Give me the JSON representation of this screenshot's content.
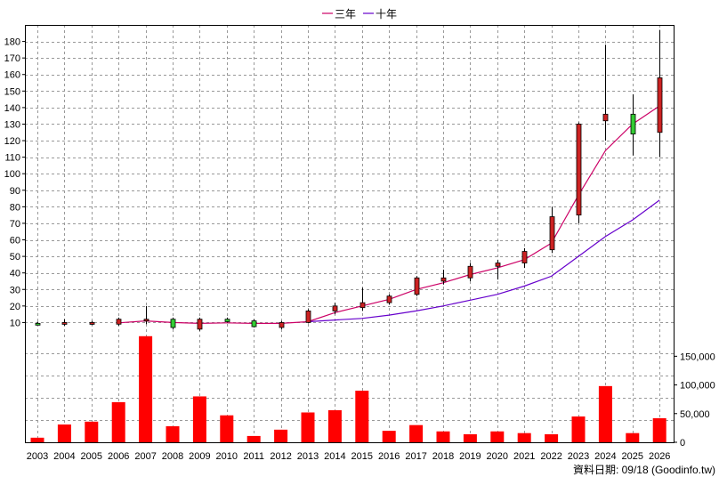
{
  "legend": {
    "items": [
      {
        "label": "三年",
        "color": "#cc0066"
      },
      {
        "label": "十年",
        "color": "#6600cc"
      }
    ],
    "position": "top-center"
  },
  "source_note": "資料日期: 09/18  (Goodinfo.tw)",
  "colors": {
    "up_candle": "#cc2222",
    "down_candle": "#33cc33",
    "volume_bar": "#ff0000",
    "grid": "#999999"
  },
  "chart_data": [
    {
      "type": "candlestick",
      "title": "",
      "grid": true,
      "x": [
        "2003",
        "2004",
        "2005",
        "2006",
        "2007",
        "2008",
        "2009",
        "2010",
        "2011",
        "2012",
        "2013",
        "2014",
        "2015",
        "2016",
        "2017",
        "2018",
        "2019",
        "2020",
        "2021",
        "2022",
        "2023",
        "2024",
        "2025",
        "2026"
      ],
      "y_ticks": [
        10,
        20,
        30,
        40,
        50,
        60,
        70,
        80,
        90,
        100,
        110,
        120,
        130,
        140,
        150,
        160,
        170,
        180
      ],
      "ylim": [
        0,
        190
      ],
      "ohlc": [
        {
          "open": 9.5,
          "high": 10.5,
          "low": 8.5,
          "close": 9
        },
        {
          "open": 9.5,
          "high": 12,
          "low": 8,
          "close": 10
        },
        {
          "open": 9,
          "high": 11,
          "low": 8.5,
          "close": 10
        },
        {
          "open": 9,
          "high": 13,
          "low": 8,
          "close": 12
        },
        {
          "open": 11,
          "high": 20,
          "low": 9,
          "close": 12
        },
        {
          "open": 12,
          "high": 13,
          "low": 6,
          "close": 7
        },
        {
          "open": 6,
          "high": 13,
          "low": 5,
          "close": 12
        },
        {
          "open": 12,
          "high": 13,
          "low": 10,
          "close": 10.5
        },
        {
          "open": 11,
          "high": 12,
          "low": 7,
          "close": 7.5
        },
        {
          "open": 7,
          "high": 11,
          "low": 6,
          "close": 10
        },
        {
          "open": 10,
          "high": 18,
          "low": 9.5,
          "close": 17
        },
        {
          "open": 17,
          "high": 22,
          "low": 15,
          "close": 20
        },
        {
          "open": 19,
          "high": 31,
          "low": 17,
          "close": 22
        },
        {
          "open": 22,
          "high": 27,
          "low": 21,
          "close": 26
        },
        {
          "open": 27,
          "high": 38,
          "low": 26,
          "close": 37
        },
        {
          "open": 35,
          "high": 42,
          "low": 33,
          "close": 37
        },
        {
          "open": 37,
          "high": 46,
          "low": 35,
          "close": 44
        },
        {
          "open": 44,
          "high": 48,
          "low": 36,
          "close": 46
        },
        {
          "open": 46,
          "high": 55,
          "low": 43,
          "close": 53
        },
        {
          "open": 54,
          "high": 80,
          "low": 52,
          "close": 74
        },
        {
          "open": 75,
          "high": 131,
          "low": 70,
          "close": 130
        },
        {
          "open": 132,
          "high": 178,
          "low": 120,
          "close": 136
        },
        {
          "open": 136,
          "high": 148,
          "low": 111,
          "close": 124
        },
        {
          "open": 125,
          "high": 187,
          "low": 110,
          "close": 158
        }
      ],
      "series": [
        {
          "name": "三年",
          "values": [
            null,
            null,
            null,
            9.8,
            11,
            10,
            9.5,
            9.8,
            9.5,
            9.5,
            10.5,
            16,
            20,
            24,
            30,
            34,
            39,
            43,
            48,
            58,
            87,
            114,
            130,
            141
          ]
        },
        {
          "name": "十年",
          "values": [
            null,
            null,
            null,
            null,
            null,
            null,
            null,
            null,
            null,
            null,
            10.5,
            11.5,
            12.5,
            14.5,
            17,
            20,
            23.5,
            27,
            32,
            38,
            50,
            62,
            72,
            84
          ]
        }
      ]
    },
    {
      "type": "bar",
      "title": "",
      "grid": true,
      "categories": [
        "2003",
        "2004",
        "2005",
        "2006",
        "2007",
        "2008",
        "2009",
        "2010",
        "2011",
        "2012",
        "2013",
        "2014",
        "2015",
        "2016",
        "2017",
        "2018",
        "2019",
        "2020",
        "2021",
        "2022",
        "2023",
        "2024",
        "2025",
        "2026"
      ],
      "values": [
        8000,
        31000,
        36000,
        70000,
        185000,
        28000,
        80000,
        47000,
        11000,
        22000,
        52000,
        56000,
        90000,
        20000,
        30000,
        19000,
        14000,
        19000,
        16000,
        14000,
        45000,
        98000,
        16000,
        42000
      ],
      "y_ticks": [
        0,
        50000,
        100000,
        150000
      ],
      "y_tick_labels": [
        "0",
        "50,000",
        "100,000",
        "150,000"
      ],
      "ylim": [
        0,
        180000
      ]
    }
  ]
}
